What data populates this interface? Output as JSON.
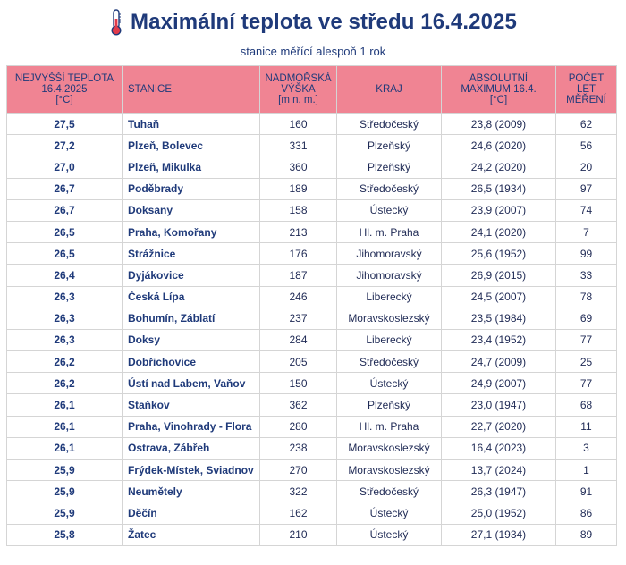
{
  "header": {
    "title": "Maximální teplota ve středu 16.4.2025",
    "subtitle": "stanice měřící alespoň 1 rok",
    "icon": "thermometer-icon"
  },
  "table": {
    "columns": [
      "NEJVYŠŠÍ TEPLOTA\n16.4.2025\n[°C]",
      "STANICE",
      "NADMOŘSKÁ\nVÝŠKA\n[m n. m.]",
      "KRAJ",
      "ABSOLUTNÍ\nMAXIMUM 16.4.\n[°C]",
      "POČET\nLET\nMĚŘENÍ"
    ],
    "rows": [
      [
        "27,5",
        "Tuhaň",
        "160",
        "Středočeský",
        "23,8 (2009)",
        "62"
      ],
      [
        "27,2",
        "Plzeň, Bolevec",
        "331",
        "Plzeňský",
        "24,6 (2020)",
        "56"
      ],
      [
        "27,0",
        "Plzeň, Mikulka",
        "360",
        "Plzeňský",
        "24,2 (2020)",
        "20"
      ],
      [
        "26,7",
        "Poděbrady",
        "189",
        "Středočeský",
        "26,5 (1934)",
        "97"
      ],
      [
        "26,7",
        "Doksany",
        "158",
        "Ústecký",
        "23,9 (2007)",
        "74"
      ],
      [
        "26,5",
        "Praha, Komořany",
        "213",
        "Hl. m. Praha",
        "24,1 (2020)",
        "7"
      ],
      [
        "26,5",
        "Strážnice",
        "176",
        "Jihomoravský",
        "25,6 (1952)",
        "99"
      ],
      [
        "26,4",
        "Dyjákovice",
        "187",
        "Jihomoravský",
        "26,9 (2015)",
        "33"
      ],
      [
        "26,3",
        "Česká Lípa",
        "246",
        "Liberecký",
        "24,5 (2007)",
        "78"
      ],
      [
        "26,3",
        "Bohumín, Záblatí",
        "237",
        "Moravskoslezský",
        "23,5 (1984)",
        "69"
      ],
      [
        "26,3",
        "Doksy",
        "284",
        "Liberecký",
        "23,4 (1952)",
        "77"
      ],
      [
        "26,2",
        "Dobřichovice",
        "205",
        "Středočeský",
        "24,7 (2009)",
        "25"
      ],
      [
        "26,2",
        "Ústí nad Labem, Vaňov",
        "150",
        "Ústecký",
        "24,9 (2007)",
        "77"
      ],
      [
        "26,1",
        "Staňkov",
        "362",
        "Plzeňský",
        "23,0 (1947)",
        "68"
      ],
      [
        "26,1",
        "Praha, Vinohrady - Flora",
        "280",
        "Hl. m. Praha",
        "22,7 (2020)",
        "11"
      ],
      [
        "26,1",
        "Ostrava, Zábřeh",
        "238",
        "Moravskoslezský",
        "16,4 (2023)",
        "3"
      ],
      [
        "25,9",
        "Frýdek-Místek, Sviadnov",
        "270",
        "Moravskoslezský",
        "13,7 (2024)",
        "1"
      ],
      [
        "25,9",
        "Neumětely",
        "322",
        "Středočeský",
        "26,3 (1947)",
        "91"
      ],
      [
        "25,9",
        "Děčín",
        "162",
        "Ústecký",
        "25,0 (1952)",
        "86"
      ],
      [
        "25,8",
        "Žatec",
        "210",
        "Ústecký",
        "27,1 (1934)",
        "89"
      ]
    ]
  },
  "colors": {
    "header_bg": "#f08493",
    "title": "#1f3a7a",
    "grid": "#d5d5d5"
  }
}
